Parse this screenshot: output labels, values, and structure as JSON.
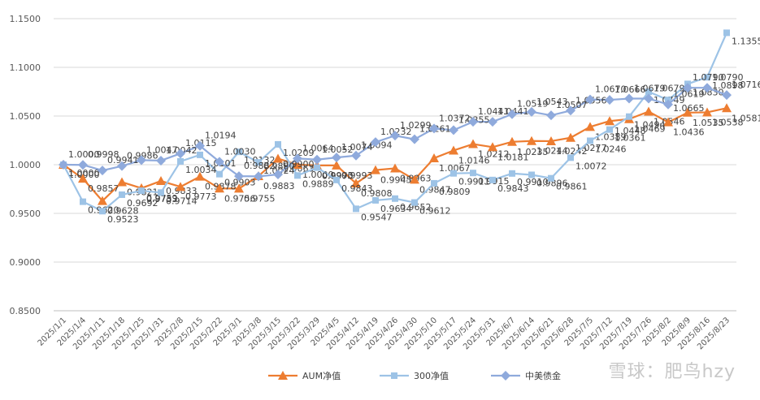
{
  "chart_data": {
    "type": "line",
    "title": "",
    "xlabel": "",
    "ylabel": "",
    "ylim": [
      0.85,
      1.15
    ],
    "yticks": [
      "0.8500",
      "0.9000",
      "0.9500",
      "1.0000",
      "1.0500",
      "1.1000",
      "1.1500"
    ],
    "grid": true,
    "legend_position": "bottom",
    "categories": [
      "2025/1/1",
      "2025/1/4",
      "2025/1/11",
      "2025/1/18",
      "2025/1/25",
      "2025/1/31",
      "2025/2/8",
      "2025/2/15",
      "2025/2/22",
      "2025/3/1",
      "2025/3/8",
      "2025/3/15",
      "2025/3/22",
      "2025/3/29",
      "2025/4/5",
      "2025/4/12",
      "2025/4/19",
      "2025/4/26",
      "2025/4/30",
      "2025/5/10",
      "2025/5/17",
      "2025/5/24",
      "2025/5/31",
      "2025/6/7",
      "2025/6/14",
      "2025/6/21",
      "2025/6/28",
      "2025/7/5",
      "2025/7/12",
      "2025/7/19",
      "2025/7/26",
      "2025/8/2",
      "2025/8/9",
      "2025/8/16",
      "2025/8/23"
    ],
    "series": [
      {
        "name": "AUM净值",
        "color": "#ED7D31",
        "marker": "triangle",
        "values": [
          1.0,
          0.9857,
          0.9628,
          0.9821,
          0.9759,
          0.9833,
          0.9773,
          0.9878,
          0.9756,
          0.9755,
          0.9883,
          1.0063,
          1.0,
          0.9993,
          0.9993,
          0.9808,
          0.9945,
          0.9963,
          0.9847,
          1.0067,
          1.0146,
          1.0212,
          1.0181,
          1.0235,
          1.0244,
          1.0242,
          1.0277,
          1.0389,
          1.0448,
          1.0469,
          1.0546,
          1.0436,
          1.0535,
          1.0538,
          1.0581
        ],
        "labels": [
          "1.0000",
          "0.9857",
          "0.9628",
          "0.9821",
          "0.9759",
          "0.9833",
          "0.9773",
          "0.9878",
          "0.9756",
          "0.9755",
          "0.9883",
          "1.0063",
          "1.0000",
          "0.9993",
          "0.9993",
          "0.9808",
          "0.9945",
          "0.9963",
          "0.9847",
          "1.0067",
          "1.0146",
          "1.0212",
          "1.0181",
          "1.0235",
          "1.0244",
          "1.0242",
          "1.0277",
          "1.0389",
          "1.0448",
          "1.0469",
          "1.0546",
          "1.0436",
          "1.0535",
          "1.0538",
          "1.0581"
        ]
      },
      {
        "name": "300净值",
        "color": "#9DC3E6",
        "marker": "square",
        "values": [
          1.0,
          0.962,
          0.9523,
          0.9692,
          0.9733,
          0.9714,
          1.0034,
          1.0101,
          0.9903,
          1.0132,
          1.0024,
          1.0209,
          0.9889,
          0.997,
          0.9843,
          0.9547,
          0.9634,
          0.9652,
          0.9612,
          0.9809,
          0.9911,
          0.9915,
          0.9843,
          0.991,
          0.9896,
          0.9861,
          1.0072,
          1.0246,
          1.0361,
          1.0494,
          1.0749,
          1.0665,
          1.083,
          1.0898,
          1.1355
        ],
        "labels": [
          "1.0000",
          "0.9620",
          "0.9523",
          "0.9692",
          "0.9733",
          "0.9714",
          "1.0034",
          "1.0101",
          "0.9903",
          "1.0132",
          "1.0024",
          "1.0209",
          "0.9889",
          "0.9970",
          "0.9843",
          "0.9547",
          "0.9634",
          "0.9652",
          "0.9612",
          "0.9809",
          "0.9911",
          "0.9915",
          "0.9843",
          "0.9910",
          "0.9896",
          "0.9861",
          "1.0072",
          "1.0246",
          "1.0361",
          "1.0494",
          "1.0749",
          "1.0665",
          "1.0830",
          "1.0898",
          "1.1355"
        ]
      },
      {
        "name": "中美债金",
        "color": "#8FAADC",
        "marker": "diamond",
        "values": [
          1.0,
          0.9998,
          0.9941,
          0.9986,
          1.0047,
          1.0042,
          1.0115,
          1.0194,
          1.003,
          0.9882,
          0.988,
          0.99,
          1.0064,
          1.0052,
          1.0074,
          1.0094,
          1.0232,
          1.0299,
          1.0261,
          1.0372,
          1.0355,
          1.0441,
          1.0441,
          1.0519,
          1.0543,
          1.0507,
          1.0556,
          1.067,
          1.0666,
          1.0679,
          1.0679,
          1.0619,
          1.079,
          1.079,
          1.0716
        ],
        "labels": [
          "1.0000",
          "0.9998",
          "0.9941",
          "0.9986",
          "1.0047",
          "1.0042",
          "1.0115",
          "1.0194",
          "1.0030",
          "0.9882",
          "0.9880",
          "0.9900",
          "1.0064",
          "1.0052",
          "1.0074",
          "1.0094",
          "1.0232",
          "1.0299",
          "1.0261",
          "1.0372",
          "1.0355",
          "1.0441",
          "1.0441",
          "1.0519",
          "1.0543",
          "1.0507",
          "1.0556",
          "1.0670",
          "1.0666",
          "1.0679",
          "1.0679",
          "1.0619",
          "1.0790",
          "1.0790",
          "1.0716"
        ]
      }
    ]
  },
  "watermark": "雪球：肥鸟hzy"
}
